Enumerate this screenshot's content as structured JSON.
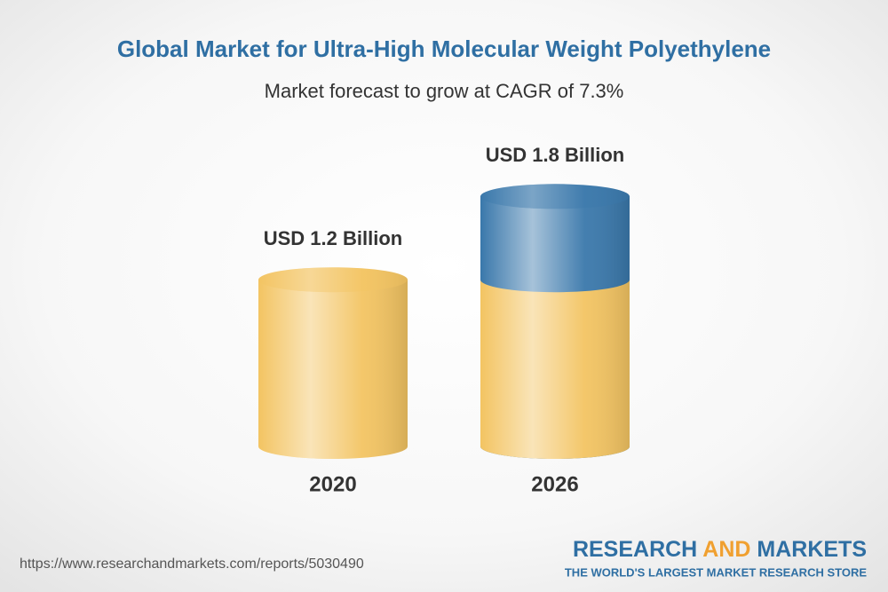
{
  "chart_data": {
    "type": "cylinder",
    "title": "Global Market for Ultra-High Molecular Weight Polyethylene",
    "subtitle": "Market forecast to grow at CAGR of 7.3%",
    "categories": [
      "2020",
      "2026"
    ],
    "values": [
      1.2,
      1.8
    ],
    "value_labels": [
      "USD 1.2 Billion",
      "USD 1.8 Billion"
    ],
    "colors": [
      "#f3c462",
      "#3a78ab"
    ]
  },
  "footer": {
    "url": "https://www.researchandmarkets.com/reports/5030490",
    "brand": [
      "RESEARCH",
      "AND",
      "MARKETS"
    ],
    "tagline": "THE WORLD'S LARGEST MARKET RESEARCH STORE"
  }
}
